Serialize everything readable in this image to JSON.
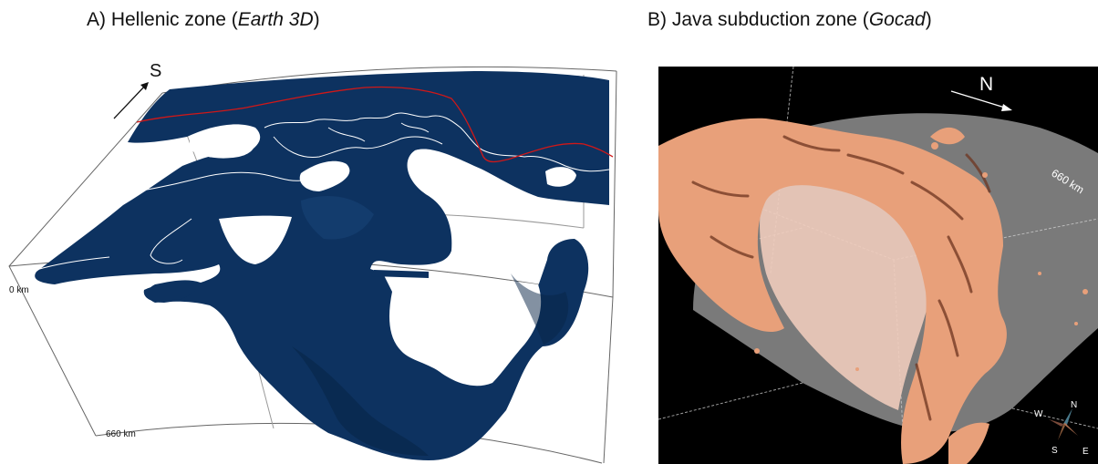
{
  "panel_a": {
    "title_prefix": "A) Hellenic zone (",
    "title_software": "Earth 3D",
    "title_suffix": ")",
    "direction_label": "S",
    "depth_top_label": "0 km",
    "depth_bottom_label": "660 km",
    "colors": {
      "slab": "#0d3260",
      "slab_dark": "#082446",
      "coast": "#ffffff",
      "trench": "#d01818",
      "frame": "#555555"
    }
  },
  "panel_b": {
    "title_prefix": "B) Java subduction zone (",
    "title_software": "Gocad",
    "title_suffix": ")",
    "direction_label": "N",
    "depth_label": "660 km",
    "compass": {
      "n": "N",
      "w": "W",
      "s": "S",
      "e": "E"
    },
    "colors": {
      "background": "#000000",
      "shell": "#7a7a7a",
      "slab": "#e8a07a",
      "slab_pale": "#f2cfc0",
      "slab_dark": "#7a3d24"
    }
  }
}
